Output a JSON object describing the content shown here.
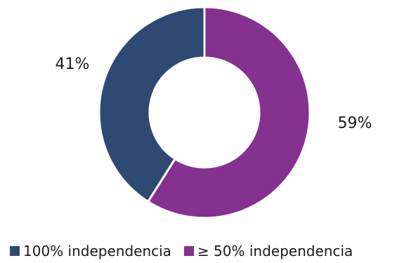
{
  "chart_data": {
    "type": "pie",
    "donut": true,
    "categories": [
      "100% independencia",
      "≥ 50% independencia"
    ],
    "values": [
      41,
      59
    ],
    "labels": [
      "41%",
      "59%"
    ],
    "colors": [
      "#2e4a73",
      "#84318f"
    ],
    "legend_position": "bottom"
  }
}
